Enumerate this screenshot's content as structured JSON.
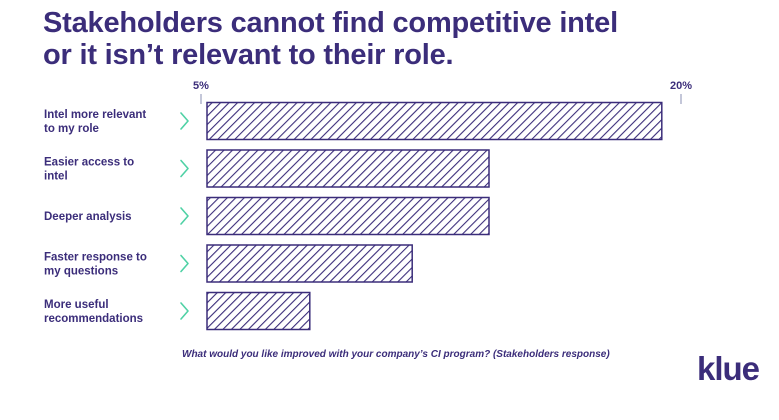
{
  "title_lines": [
    "Stakeholders cannot find competitive intel",
    "or it isn’t relevant to their role."
  ],
  "caption": "What would you like improved with your company’s CI program? (Stakeholders response)",
  "logo": {
    "text": "klue"
  },
  "colors": {
    "primary": "#3b2d7a",
    "chevron": "#4fd1a5",
    "axis": "#8a8fb3",
    "background": "#ffffff"
  },
  "chart_data": {
    "type": "bar",
    "orientation": "horizontal",
    "fill_pattern": "diagonal-hatch",
    "categories": [
      [
        "Intel more relevant",
        "to my role"
      ],
      [
        "Easier access to",
        "intel"
      ],
      [
        "Deeper analysis"
      ],
      [
        "Faster response to",
        "my questions"
      ],
      [
        "More useful",
        "recommendations"
      ]
    ],
    "values": [
      19.4,
      14.0,
      14.0,
      11.6,
      8.4
    ],
    "xlim": [
      5,
      20
    ],
    "xticks": [
      {
        "value": 5,
        "label": "5%"
      },
      {
        "value": 20,
        "label": "20%"
      }
    ],
    "xlabel": "",
    "ylabel": "",
    "grid": false,
    "legend": "none"
  }
}
